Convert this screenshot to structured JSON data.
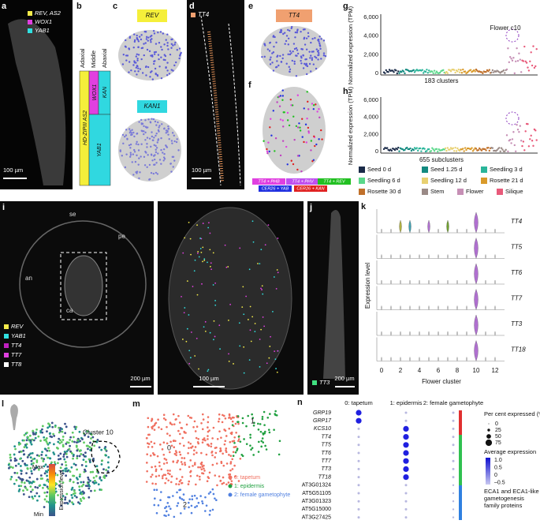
{
  "panels": {
    "a": {
      "label": "a",
      "legend": [
        "REV, AS2",
        "WOX1",
        "YAB1"
      ],
      "scale": "100 µm"
    },
    "b": {
      "label": "b",
      "axes": [
        "Adaxial",
        "Middle",
        "Abaxial"
      ],
      "domains": [
        "HD-ZIPIII AS2",
        "WOX1",
        "KAN",
        "YAB1"
      ]
    },
    "c": {
      "label": "c",
      "genes": [
        "REV",
        "KAN1"
      ]
    },
    "d": {
      "label": "d",
      "gene": "TT4",
      "scale": "100 µm"
    },
    "e": {
      "label": "e",
      "gene": "TT4"
    },
    "f": {
      "label": "f",
      "legend": [
        "TT4 + PHB",
        "TT4 + PHV",
        "TT4 + REV",
        "CER26 + YAB",
        "CER26 + KAN"
      ]
    },
    "g": {
      "label": "g",
      "y_label": "Normalized expression (TPM)",
      "yticks": [
        "0",
        "2,000",
        "4,000",
        "6,000"
      ],
      "annotation": "Flower c10",
      "x_label": "183 clusters"
    },
    "h": {
      "label": "h",
      "y_label": "Normalized expression (TPM)",
      "yticks": [
        "0",
        "2,000",
        "4,000",
        "6,000"
      ],
      "x_label": "655 subclusters"
    },
    "gh_legend": [
      "Seed 0 d",
      "Seed 1.25 d",
      "Seedling 3 d",
      "Seedling 6 d",
      "Seedling 12 d",
      "Rosette 21 d",
      "Rosette 30 d",
      "Stem",
      "Flower",
      "Silique"
    ],
    "i": {
      "label": "i",
      "tissues": [
        "se",
        "pe",
        "an",
        "ca"
      ],
      "legend": [
        "REV",
        "YAB1",
        "TT4",
        "TT7",
        "TT8"
      ],
      "scales": [
        "200 µm",
        "100 µm"
      ]
    },
    "j": {
      "label": "j",
      "gene": "TT3",
      "scale": "200 µm"
    },
    "k": {
      "label": "k",
      "y_label": "Expression level",
      "genes": [
        "TT4",
        "TT5",
        "TT6",
        "TT7",
        "TT3",
        "TT18"
      ],
      "xticks": [
        "0",
        "2",
        "4",
        "6",
        "8",
        "10",
        "12"
      ],
      "x_label": "Flower cluster"
    },
    "l": {
      "label": "l",
      "annotation": "Cluster 10",
      "colorbar": [
        "Max",
        "Expression level",
        "Min"
      ]
    },
    "m": {
      "label": "m",
      "cluster_labels": [
        "0",
        "1",
        "2"
      ],
      "legend": [
        "0: tapetum",
        "1: epidermis",
        "2: female gametophyte"
      ]
    },
    "n": {
      "label": "n",
      "columns": [
        "0: tapetum",
        "1: epidermis",
        "2: female gametophyte"
      ],
      "genes": [
        "GRP19",
        "GRP17",
        "KCS10",
        "TT4",
        "TT5",
        "TT6",
        "TT7",
        "TT3",
        "TT18",
        "AT3G01324",
        "AT5G51105",
        "AT3G01323",
        "AT5G15000",
        "AT3G27425"
      ],
      "size_title": "Per cent expressed (%)",
      "size_ticks": [
        "0",
        "25",
        "50",
        "75"
      ],
      "color_title": "Average expression",
      "color_ticks": [
        "1.0",
        "0.5",
        "0",
        "–0.5"
      ],
      "group_note": "ECA1 and ECA1-like gametogenesis family proteins"
    }
  }
}
